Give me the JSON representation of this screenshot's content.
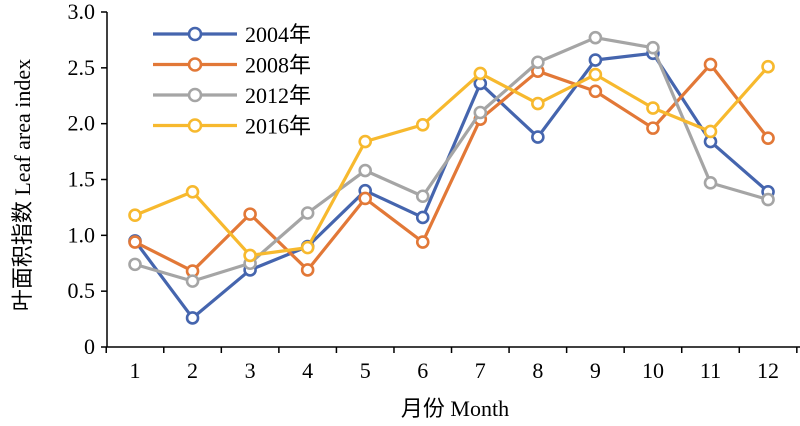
{
  "chart_data": {
    "type": "line",
    "title": "",
    "xlabel": "月份 Month",
    "ylabel": "叶面积指数 Leaf area index",
    "categories": [
      "1",
      "2",
      "3",
      "4",
      "5",
      "6",
      "7",
      "8",
      "9",
      "10",
      "11",
      "12"
    ],
    "ylim": [
      0,
      3.0
    ],
    "yticks": [
      "0",
      "0.5",
      "1.0",
      "1.5",
      "2.0",
      "2.5",
      "3.0"
    ],
    "grid": false,
    "legend_position": "top-left",
    "series": [
      {
        "name": "2004年",
        "color": "#4565AE",
        "values": [
          0.95,
          0.26,
          0.69,
          0.9,
          1.4,
          1.16,
          2.36,
          1.88,
          2.57,
          2.63,
          1.84,
          1.39
        ]
      },
      {
        "name": "2008年",
        "color": "#E27837",
        "values": [
          0.94,
          0.68,
          1.19,
          0.69,
          1.33,
          0.94,
          2.04,
          2.47,
          2.29,
          1.96,
          2.53,
          1.87
        ]
      },
      {
        "name": "2012年",
        "color": "#A5A5A5",
        "values": [
          0.74,
          0.59,
          0.75,
          1.2,
          1.58,
          1.35,
          2.1,
          2.55,
          2.77,
          2.68,
          1.47,
          1.32
        ]
      },
      {
        "name": "2016年",
        "color": "#F7B92E",
        "values": [
          1.18,
          1.39,
          0.82,
          0.89,
          1.84,
          1.99,
          2.45,
          2.18,
          2.44,
          2.14,
          1.93,
          2.51
        ]
      }
    ]
  }
}
